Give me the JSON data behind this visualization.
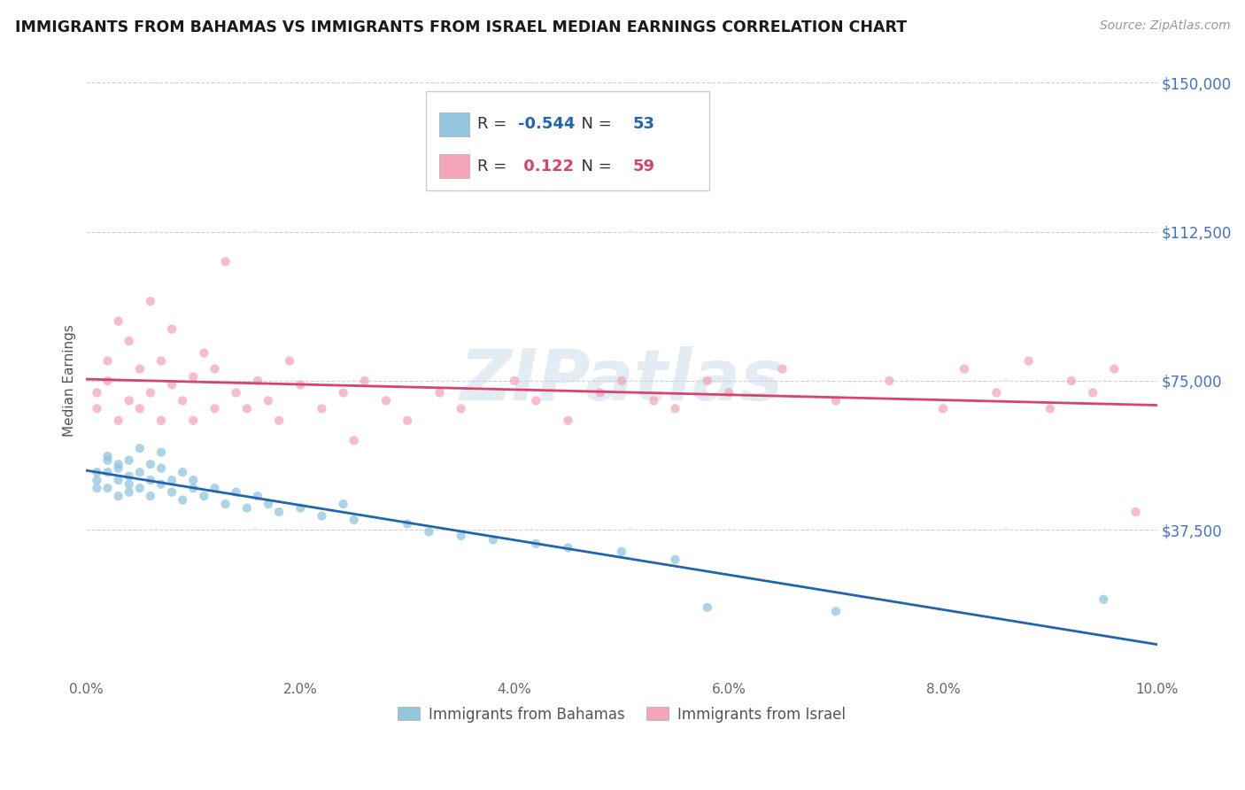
{
  "title": "IMMIGRANTS FROM BAHAMAS VS IMMIGRANTS FROM ISRAEL MEDIAN EARNINGS CORRELATION CHART",
  "source": "Source: ZipAtlas.com",
  "ylabel": "Median Earnings",
  "xmin": 0.0,
  "xmax": 0.1,
  "ymin": 0,
  "ymax": 150000,
  "yticks": [
    0,
    37500,
    75000,
    112500,
    150000
  ],
  "ytick_labels": [
    "",
    "$37,500",
    "$75,000",
    "$112,500",
    "$150,000"
  ],
  "xticks": [
    0.0,
    0.02,
    0.04,
    0.06,
    0.08,
    0.1
  ],
  "xtick_labels": [
    "0.0%",
    "2.0%",
    "4.0%",
    "6.0%",
    "8.0%",
    "10.0%"
  ],
  "blue_color": "#92c5de",
  "pink_color": "#f4a6b8",
  "blue_line_color": "#2166ac",
  "pink_line_color": "#d6446e",
  "R_blue": -0.544,
  "N_blue": 53,
  "R_pink": 0.122,
  "N_pink": 59,
  "legend_label_blue": "Immigrants from Bahamas",
  "legend_label_pink": "Immigrants from Israel",
  "watermark": "ZIPatlas",
  "blue_scatter_x": [
    0.001,
    0.001,
    0.001,
    0.002,
    0.002,
    0.002,
    0.002,
    0.003,
    0.003,
    0.003,
    0.003,
    0.004,
    0.004,
    0.004,
    0.004,
    0.005,
    0.005,
    0.005,
    0.006,
    0.006,
    0.006,
    0.007,
    0.007,
    0.007,
    0.008,
    0.008,
    0.009,
    0.009,
    0.01,
    0.01,
    0.011,
    0.012,
    0.013,
    0.014,
    0.015,
    0.016,
    0.017,
    0.018,
    0.02,
    0.022,
    0.024,
    0.025,
    0.03,
    0.032,
    0.035,
    0.038,
    0.042,
    0.045,
    0.05,
    0.055,
    0.058,
    0.07,
    0.095
  ],
  "blue_scatter_y": [
    50000,
    48000,
    52000,
    55000,
    52000,
    48000,
    56000,
    50000,
    53000,
    46000,
    54000,
    51000,
    47000,
    55000,
    49000,
    52000,
    48000,
    58000,
    50000,
    46000,
    54000,
    53000,
    49000,
    57000,
    50000,
    47000,
    52000,
    45000,
    50000,
    48000,
    46000,
    48000,
    44000,
    47000,
    43000,
    46000,
    44000,
    42000,
    43000,
    41000,
    44000,
    40000,
    39000,
    37000,
    36000,
    35000,
    34000,
    33000,
    32000,
    30000,
    18000,
    17000,
    20000
  ],
  "pink_scatter_x": [
    0.001,
    0.001,
    0.002,
    0.002,
    0.003,
    0.003,
    0.004,
    0.004,
    0.005,
    0.005,
    0.006,
    0.006,
    0.007,
    0.007,
    0.008,
    0.008,
    0.009,
    0.01,
    0.01,
    0.011,
    0.012,
    0.012,
    0.013,
    0.014,
    0.015,
    0.016,
    0.017,
    0.018,
    0.019,
    0.02,
    0.022,
    0.024,
    0.025,
    0.026,
    0.028,
    0.03,
    0.033,
    0.035,
    0.04,
    0.042,
    0.045,
    0.048,
    0.05,
    0.053,
    0.055,
    0.058,
    0.06,
    0.065,
    0.07,
    0.075,
    0.08,
    0.082,
    0.085,
    0.088,
    0.09,
    0.092,
    0.094,
    0.096,
    0.098
  ],
  "pink_scatter_y": [
    68000,
    72000,
    75000,
    80000,
    65000,
    90000,
    85000,
    70000,
    78000,
    68000,
    95000,
    72000,
    80000,
    65000,
    88000,
    74000,
    70000,
    76000,
    65000,
    82000,
    78000,
    68000,
    105000,
    72000,
    68000,
    75000,
    70000,
    65000,
    80000,
    74000,
    68000,
    72000,
    60000,
    75000,
    70000,
    65000,
    72000,
    68000,
    75000,
    70000,
    65000,
    72000,
    75000,
    70000,
    68000,
    75000,
    72000,
    78000,
    70000,
    75000,
    68000,
    78000,
    72000,
    80000,
    68000,
    75000,
    72000,
    78000,
    42000
  ]
}
